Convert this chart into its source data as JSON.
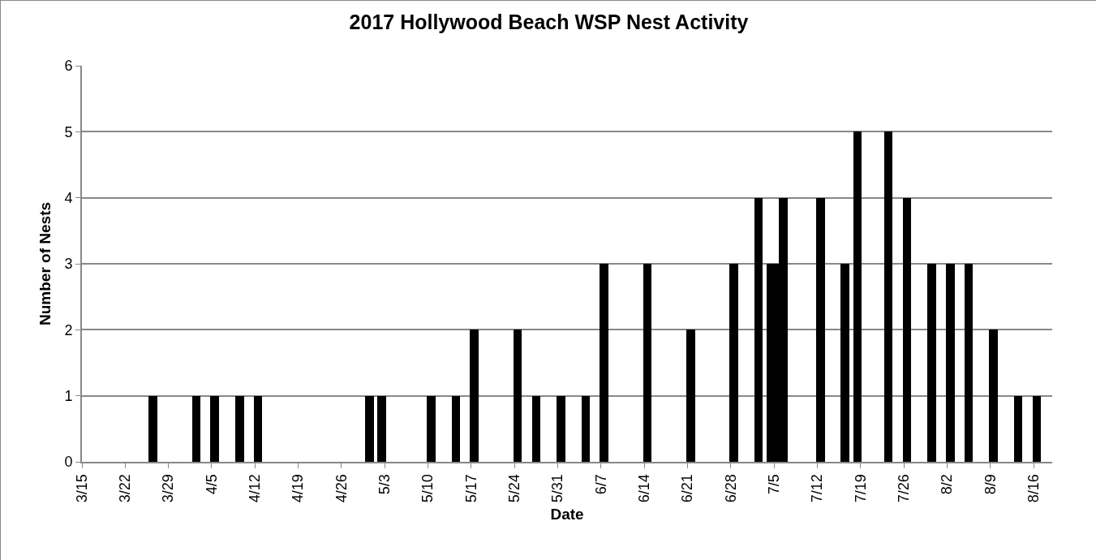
{
  "chart_data": {
    "type": "bar",
    "title": "2017 Hollywood Beach WSP Nest Activity",
    "xlabel": "Date",
    "ylabel": "Number of Nests",
    "x": [
      "--03-26",
      "--04-02",
      "--04-05",
      "--04-09",
      "--04-12",
      "--04-30",
      "--05-02",
      "--05-10",
      "--05-14",
      "--05-17",
      "--05-24",
      "--05-27",
      "--05-31",
      "--06-04",
      "--06-07",
      "--06-14",
      "--06-21",
      "--06-28",
      "--07-02",
      "--07-04",
      "--07-05",
      "--07-06",
      "--07-12",
      "--07-16",
      "--07-18",
      "--07-23",
      "--07-26",
      "--07-30",
      "--08-02",
      "--08-05",
      "--08-09",
      "--08-13",
      "--08-16"
    ],
    "values": [
      1,
      1,
      1,
      1,
      1,
      1,
      1,
      1,
      1,
      2,
      2,
      1,
      1,
      1,
      3,
      3,
      2,
      3,
      4,
      3,
      3,
      4,
      4,
      3,
      5,
      5,
      4,
      3,
      3,
      3,
      2,
      1,
      1
    ],
    "color": "#000000",
    "xlim": [
      "--03-15",
      "--08-19"
    ],
    "xticks": [
      {
        "value": "--03-15",
        "label": "3/15"
      },
      {
        "value": "--03-22",
        "label": "3/22"
      },
      {
        "value": "--03-29",
        "label": "3/29"
      },
      {
        "value": "--04-05",
        "label": "4/5"
      },
      {
        "value": "--04-12",
        "label": "4/12"
      },
      {
        "value": "--04-19",
        "label": "4/19"
      },
      {
        "value": "--04-26",
        "label": "4/26"
      },
      {
        "value": "--05-03",
        "label": "5/3"
      },
      {
        "value": "--05-10",
        "label": "5/10"
      },
      {
        "value": "--05-17",
        "label": "5/17"
      },
      {
        "value": "--05-24",
        "label": "5/24"
      },
      {
        "value": "--05-31",
        "label": "5/31"
      },
      {
        "value": "--06-07",
        "label": "6/7"
      },
      {
        "value": "--06-14",
        "label": "6/14"
      },
      {
        "value": "--06-21",
        "label": "6/21"
      },
      {
        "value": "--06-28",
        "label": "6/28"
      },
      {
        "value": "--07-05",
        "label": "7/5"
      },
      {
        "value": "--07-12",
        "label": "7/12"
      },
      {
        "value": "--07-19",
        "label": "7/19"
      },
      {
        "value": "--07-26",
        "label": "7/26"
      },
      {
        "value": "--08-02",
        "label": "8/2"
      },
      {
        "value": "--08-09",
        "label": "8/9"
      },
      {
        "value": "--08-16",
        "label": "8/16"
      }
    ],
    "ylim": [
      0,
      6
    ],
    "yticks": [
      0,
      1,
      2,
      3,
      4,
      5,
      6
    ],
    "grid": "y"
  }
}
